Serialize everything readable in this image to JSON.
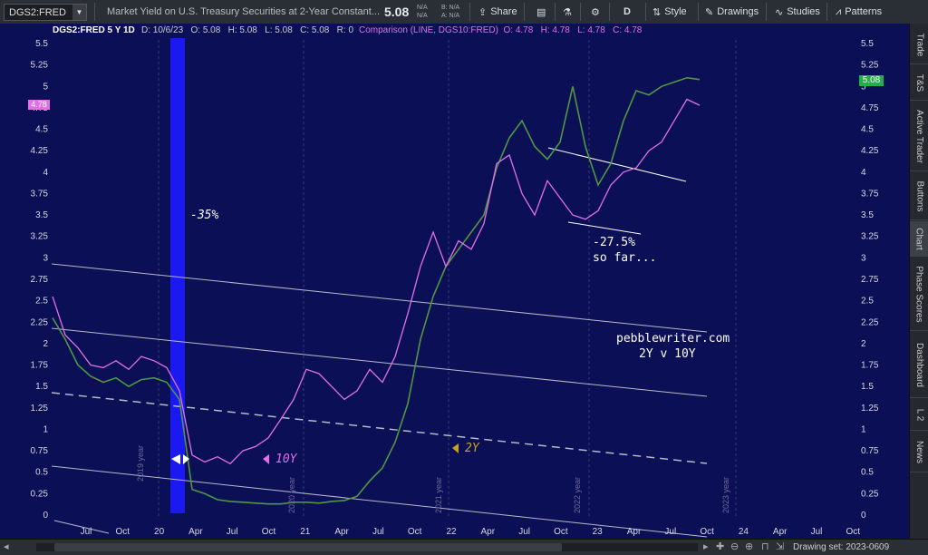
{
  "toolbar": {
    "symbol": "DGS2:FRED",
    "description": "Market Yield on U.S. Treasury Securities at 2-Year Constant...",
    "last": "5.08",
    "na1": "N/A",
    "na2": "N/A",
    "b": "B: N/A",
    "a": "A: N/A",
    "share": "Share",
    "aggregation": "D",
    "style": "Style",
    "drawings": "Drawings",
    "studies": "Studies",
    "patterns": "Patterns"
  },
  "right_tabs": [
    "Trade",
    "T&S",
    "Active Trader",
    "Buttons",
    "Chart",
    "Phase Scores",
    "Dashboard",
    "L 2",
    "News"
  ],
  "chart_header": {
    "main": "DGS2:FRED 5 Y 1D",
    "ohlc": "D: 10/6/23   O: 5.08   H: 5.08   L: 5.08   C: 5.08   R: 0",
    "comparison": "Comparison (LINE, DGS10:FRED)  O: 4.78   H: 4.78   L: 4.78   C: 4.78"
  },
  "price_tags": {
    "left": "4.78",
    "right": "5.08"
  },
  "annotations": {
    "drop": "-35%",
    "drawdown": "-27.5%",
    "drawdown2": "so far...",
    "label10y": "10Y",
    "label2y": "2Y",
    "site": "pebblewriter.com",
    "site2": "2Y v 10Y"
  },
  "year_markers": [
    "2019 year",
    "2020 year",
    "2021 year",
    "2022 year",
    "2023 year"
  ],
  "bottom": {
    "drawing_set": "Drawing set: 2023-0609"
  },
  "colors": {
    "background": "#0b0f55",
    "tenyear": "#e070e8",
    "twoyear_up": "#2fa84a",
    "twoyear_down": "#d4541e",
    "highlight": "#1a1af0"
  },
  "chart_data": {
    "type": "line",
    "y_ticks": [
      "5.5",
      "5.25",
      "5",
      "4.75",
      "4.5",
      "4.25",
      "4",
      "3.75",
      "3.5",
      "3.25",
      "3",
      "2.75",
      "2.5",
      "2.25",
      "2",
      "1.75",
      "1.5",
      "1.25",
      "1",
      "0.75",
      "0.5",
      "0.25",
      "0"
    ],
    "x_ticks": [
      "Jul",
      "Oct",
      "20",
      "Apr",
      "Jul",
      "Oct",
      "21",
      "Apr",
      "Jul",
      "Oct",
      "22",
      "Apr",
      "Jul",
      "Oct",
      "23",
      "Apr",
      "Jul",
      "Oct",
      "24",
      "Apr",
      "Jul",
      "Oct"
    ],
    "ylim": [
      0,
      5.5
    ],
    "series": [
      {
        "name": "DGS2:FRED",
        "t": [
          0,
          1,
          2,
          3,
          4,
          5,
          6,
          7,
          8,
          9,
          10,
          11,
          12,
          13,
          14,
          15,
          16,
          17,
          18,
          19,
          20,
          21,
          22,
          23,
          24,
          25,
          26,
          27,
          28,
          29,
          30,
          31,
          32,
          33,
          34,
          35,
          36,
          37,
          38,
          39,
          40,
          41,
          42,
          43,
          44,
          45,
          46,
          47,
          48,
          49,
          50,
          51
        ],
        "values": [
          2.3,
          2.05,
          1.75,
          1.62,
          1.55,
          1.6,
          1.5,
          1.58,
          1.6,
          1.55,
          1.35,
          0.3,
          0.25,
          0.18,
          0.16,
          0.15,
          0.14,
          0.13,
          0.13,
          0.15,
          0.15,
          0.14,
          0.16,
          0.17,
          0.22,
          0.4,
          0.55,
          0.85,
          1.3,
          2.05,
          2.55,
          2.9,
          3.1,
          3.3,
          3.5,
          4.05,
          4.4,
          4.6,
          4.3,
          4.15,
          4.35,
          5.0,
          4.3,
          3.85,
          4.1,
          4.6,
          4.95,
          4.9,
          5.0,
          5.05,
          5.1,
          5.08
        ]
      },
      {
        "name": "DGS10:FRED",
        "t": [
          0,
          1,
          2,
          3,
          4,
          5,
          6,
          7,
          8,
          9,
          10,
          11,
          12,
          13,
          14,
          15,
          16,
          17,
          18,
          19,
          20,
          21,
          22,
          23,
          24,
          25,
          26,
          27,
          28,
          29,
          30,
          31,
          32,
          33,
          34,
          35,
          36,
          37,
          38,
          39,
          40,
          41,
          42,
          43,
          44,
          45,
          46,
          47,
          48,
          49,
          50,
          51
        ],
        "values": [
          2.55,
          2.1,
          1.95,
          1.75,
          1.72,
          1.8,
          1.7,
          1.85,
          1.8,
          1.72,
          1.45,
          0.7,
          0.62,
          0.68,
          0.6,
          0.75,
          0.8,
          0.9,
          1.12,
          1.35,
          1.7,
          1.65,
          1.5,
          1.35,
          1.45,
          1.7,
          1.55,
          1.85,
          2.35,
          2.9,
          3.3,
          2.9,
          3.2,
          3.1,
          3.4,
          4.1,
          4.2,
          3.75,
          3.5,
          3.9,
          3.7,
          3.5,
          3.45,
          3.55,
          3.85,
          4.0,
          4.05,
          4.25,
          4.35,
          4.6,
          4.85,
          4.78
        ]
      }
    ]
  }
}
